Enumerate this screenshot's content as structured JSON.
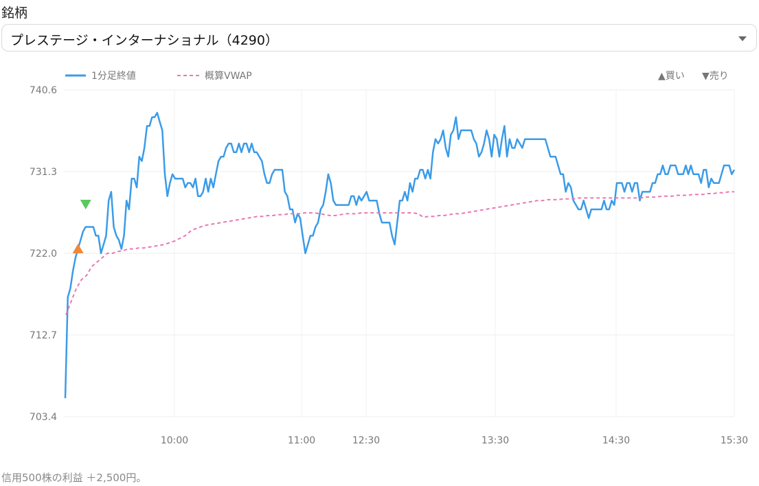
{
  "header": {
    "label": "銘柄",
    "select_value": "プレステージ・インターナショナル（4290）"
  },
  "chart_data": {
    "type": "line",
    "y_ticks": [
      "740.6",
      "731.3",
      "722.0",
      "712.7",
      "703.4"
    ],
    "ylim": [
      703.4,
      740.6
    ],
    "x_ticks": [
      "10:00",
      "11:00",
      "12:30",
      "13:30",
      "14:30",
      "15:30"
    ],
    "grid": true,
    "legend_position": "top",
    "series": [
      {
        "name": "1分足終値",
        "color": "#3a9be8",
        "style": "solid",
        "values": [
          705.5,
          717,
          718,
          720,
          721.5,
          722.5,
          723.5,
          724.5,
          725,
          725,
          725,
          725,
          724,
          724,
          722,
          723,
          724,
          728,
          729,
          725,
          724,
          723.5,
          722.5,
          724,
          728,
          727,
          730.5,
          730.5,
          729.5,
          733,
          732.5,
          734,
          736.5,
          736.5,
          737.5,
          737.5,
          738,
          737,
          736,
          731,
          728.5,
          730,
          731,
          730.5,
          730.5,
          730.5,
          730.5,
          729.5,
          730,
          730,
          729.5,
          730.5,
          728.5,
          728.5,
          729,
          730.5,
          729,
          730.5,
          729.5,
          731,
          732.5,
          733,
          733,
          734,
          734.5,
          734.5,
          733.5,
          733.5,
          734.5,
          733.5,
          734.5,
          734.5,
          733.5,
          734.5,
          733.5,
          733.5,
          733,
          732.5,
          731,
          730,
          730,
          731,
          731.5,
          731.5,
          731.5,
          731.5,
          729,
          728.5,
          727,
          727,
          725.5,
          726.5,
          726,
          724,
          722,
          723,
          724,
          724,
          725,
          725.5,
          727,
          727.5,
          729,
          731,
          730,
          728,
          727.5,
          727.5,
          727.5,
          727.5,
          727.5,
          727.5,
          728.5,
          728.5,
          727.5,
          728.5,
          728,
          728.5,
          729,
          728,
          728,
          728,
          728,
          726.5,
          725.5,
          725.5,
          725.5,
          725.5,
          724,
          723,
          725.5,
          728,
          728,
          729,
          728,
          730,
          729,
          730.5,
          730.5,
          731.5,
          731.5,
          730.5,
          731.5,
          730.5,
          733.5,
          735,
          734.5,
          735,
          736,
          734,
          733,
          735.5,
          736,
          737.5,
          735,
          736,
          736,
          736,
          736,
          736,
          735,
          734.5,
          733,
          733.5,
          734.5,
          736,
          735,
          733,
          735.5,
          735,
          733,
          735,
          736.5,
          733,
          735,
          734,
          734,
          735,
          734.5,
          734,
          735,
          735,
          735,
          735,
          735,
          735,
          735,
          735,
          735,
          734,
          733,
          733,
          733,
          732,
          731,
          731,
          729,
          730,
          729.5,
          728,
          727.5,
          727,
          727,
          728,
          727,
          726,
          727,
          727,
          727,
          727,
          727,
          728,
          727,
          727,
          728,
          727.5,
          730,
          730,
          730,
          729,
          730,
          730,
          729,
          730,
          730,
          728,
          729,
          729,
          729,
          729,
          730,
          730,
          731,
          731,
          732,
          731,
          731,
          732,
          732,
          732,
          731,
          731,
          731,
          732,
          731,
          732,
          731,
          731,
          731,
          730,
          731.5,
          731.5,
          729.5,
          730.5,
          730,
          730,
          730,
          731,
          732,
          732,
          732,
          731,
          731.5
        ]
      },
      {
        "name": "概算VWAP",
        "color": "#e879b0",
        "style": "dashed",
        "values": [
          715,
          716.5,
          718,
          719,
          719.5,
          720.5,
          721,
          721.5,
          722,
          722,
          722.2,
          722.3,
          722.5,
          722.5,
          722.6,
          722.6,
          722.7,
          722.8,
          722.9,
          723,
          723.2,
          723.4,
          723.7,
          724,
          724.5,
          724.8,
          725,
          725.2,
          725.3,
          725.4,
          725.5,
          725.6,
          725.7,
          725.8,
          725.9,
          726,
          726.1,
          726.2,
          726.2,
          726.3,
          726.3,
          726.4,
          726.4,
          726.5,
          726.5,
          726.5,
          726.6,
          726.6,
          726.6,
          726.5,
          726.4,
          726.3,
          726.3,
          726.4,
          726.5,
          726.5,
          726.5,
          726.6,
          726.6,
          726.6,
          726.6,
          726.6,
          726.6,
          726.6,
          726.6,
          726.6,
          726.6,
          726.6,
          726.5,
          726.1,
          726.2,
          726.2,
          726.3,
          726.3,
          726.4,
          726.5,
          726.5,
          726.6,
          726.7,
          726.8,
          726.9,
          727,
          727.1,
          727.2,
          727.3,
          727.4,
          727.5,
          727.6,
          727.7,
          727.8,
          727.9,
          728,
          728,
          728.1,
          728.1,
          728.1,
          728.2,
          728.2,
          728.2,
          728.3,
          728.3,
          728.3,
          728.3,
          728.3,
          728.3,
          728.3,
          728.3,
          728.3,
          728.3,
          728.3,
          728.3,
          728.3,
          728.4,
          728.4,
          728.4,
          728.5,
          728.5,
          728.5,
          728.6,
          728.6,
          728.6,
          728.7,
          728.7,
          728.7,
          728.8,
          728.8,
          728.9,
          728.9,
          729,
          729
        ]
      }
    ],
    "markers": [
      {
        "label": "▲買い",
        "color": "#f0883a",
        "x_index": 5,
        "y": 722.0,
        "direction": "up"
      },
      {
        "label": "▼売り",
        "color": "#5dc85d",
        "x_index": 8,
        "y": 727.0,
        "direction": "down"
      }
    ]
  },
  "legend": {
    "series1": "1分足終値",
    "series2": "概算VWAP",
    "buy": "▲買い",
    "sell": "▼売り"
  },
  "footer": {
    "text": "信用500株の利益 ＋2,500円。"
  }
}
